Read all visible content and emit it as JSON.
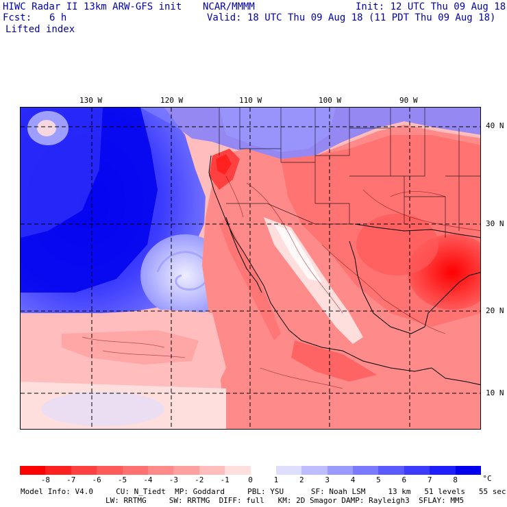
{
  "header": {
    "title": "HIWC Radar II 13km ARW-GFS init",
    "agency": "NCAR/MMMM",
    "init": "Init: 12 UTC Thu 09 Aug 18",
    "fcst_label": "Fcst:",
    "fcst_value": "6 h",
    "valid": "Valid: 18 UTC Thu 09 Aug 18 (11 PDT Thu 09 Aug 18)",
    "field": "Lifted index"
  },
  "map": {
    "lon_labels": [
      "130 W",
      "120 W",
      "110 W",
      "100 W",
      "90 W"
    ],
    "lat_labels": [
      "40 N",
      "30 N",
      "20 N",
      "10 N"
    ]
  },
  "colorbar": {
    "ticks": [
      "-8",
      "-7",
      "-6",
      "-5",
      "-4",
      "-3",
      "-2",
      "-1",
      "0",
      "1",
      "2",
      "3",
      "4",
      "5",
      "6",
      "7",
      "8"
    ],
    "unit": "°C",
    "colors": [
      "#ff0000",
      "#ff2020",
      "#ff4040",
      "#ff5a5a",
      "#ff7070",
      "#ff8a8a",
      "#ffa0a0",
      "#ffbdbd",
      "#ffdede",
      "#ffffff",
      "#dedeff",
      "#bdbdff",
      "#9a9aff",
      "#7a7aff",
      "#5a5aff",
      "#3c3cff",
      "#1e1eff",
      "#0000ee"
    ]
  },
  "footer": {
    "line1": "Model Info: V4.0     CU: N_Tiedt  MP: Goddard     PBL: YSU      SF: Noah LSM     13 km   51 levels   55 sec",
    "line2": "LW: RRTMG     SW: RRTMG  DIFF: full   KM: 2D Smagor DAMP: Rayleigh3  SFLAY: MM5"
  }
}
